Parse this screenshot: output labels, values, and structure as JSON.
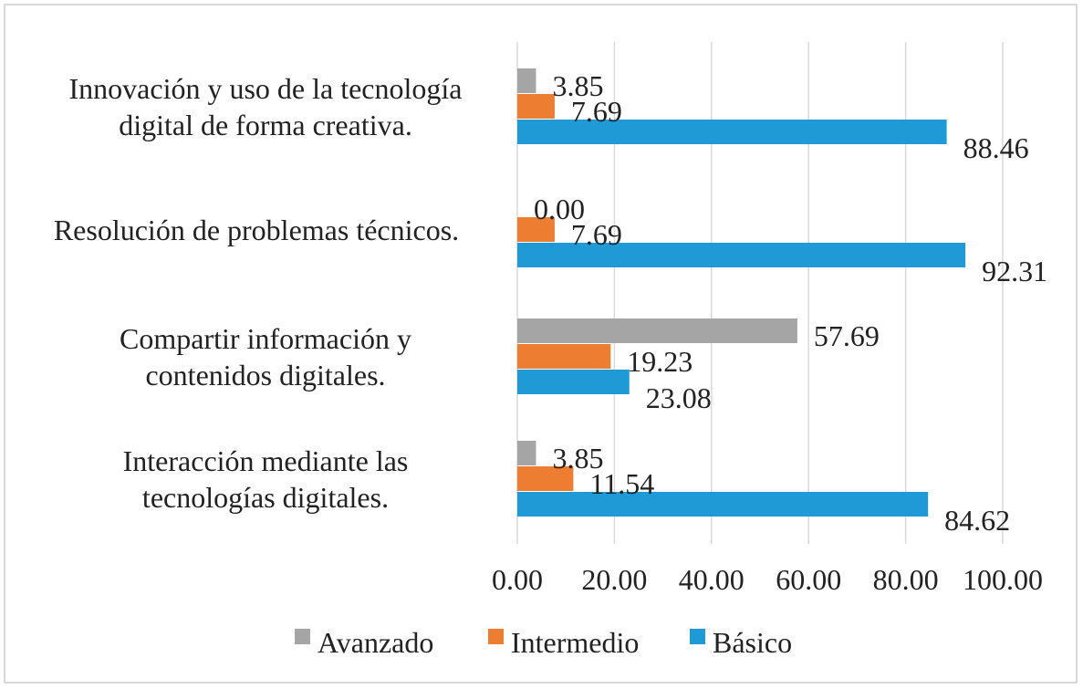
{
  "chart_data": {
    "type": "bar",
    "orientation": "horizontal",
    "categories": [
      [
        "Innovación y uso de la tecnología",
        "digital de forma creativa."
      ],
      [
        "Resolución de problemas técnicos."
      ],
      [
        "Compartir información y",
        "contenidos digitales."
      ],
      [
        "Interacción mediante las",
        "tecnologías digitales."
      ]
    ],
    "series": [
      {
        "name": "Avanzado",
        "color": "#a5a5a5",
        "values": [
          3.85,
          0.0,
          57.69,
          3.85
        ],
        "labels": [
          "3.85",
          "0.00",
          "57.69",
          "3.85"
        ]
      },
      {
        "name": "Intermedio",
        "color": "#ed7d31",
        "values": [
          7.69,
          7.69,
          19.23,
          11.54
        ],
        "labels": [
          "7.69",
          "7.69",
          "19.23",
          "11.54"
        ]
      },
      {
        "name": "Básico",
        "color": "#1f9ad6",
        "values": [
          88.46,
          92.31,
          23.08,
          84.62
        ],
        "labels": [
          "88.46",
          "92.31",
          "23.08",
          "84.62"
        ]
      }
    ],
    "xlim": [
      0,
      100
    ],
    "xticks": [
      0,
      20,
      40,
      60,
      80,
      100
    ],
    "xtick_labels": [
      "0.00",
      "20.00",
      "40.00",
      "60.00",
      "80.00",
      "100.00"
    ],
    "grid": "vertical",
    "legend_position": "bottom",
    "title": "",
    "xlabel": "",
    "ylabel": ""
  }
}
